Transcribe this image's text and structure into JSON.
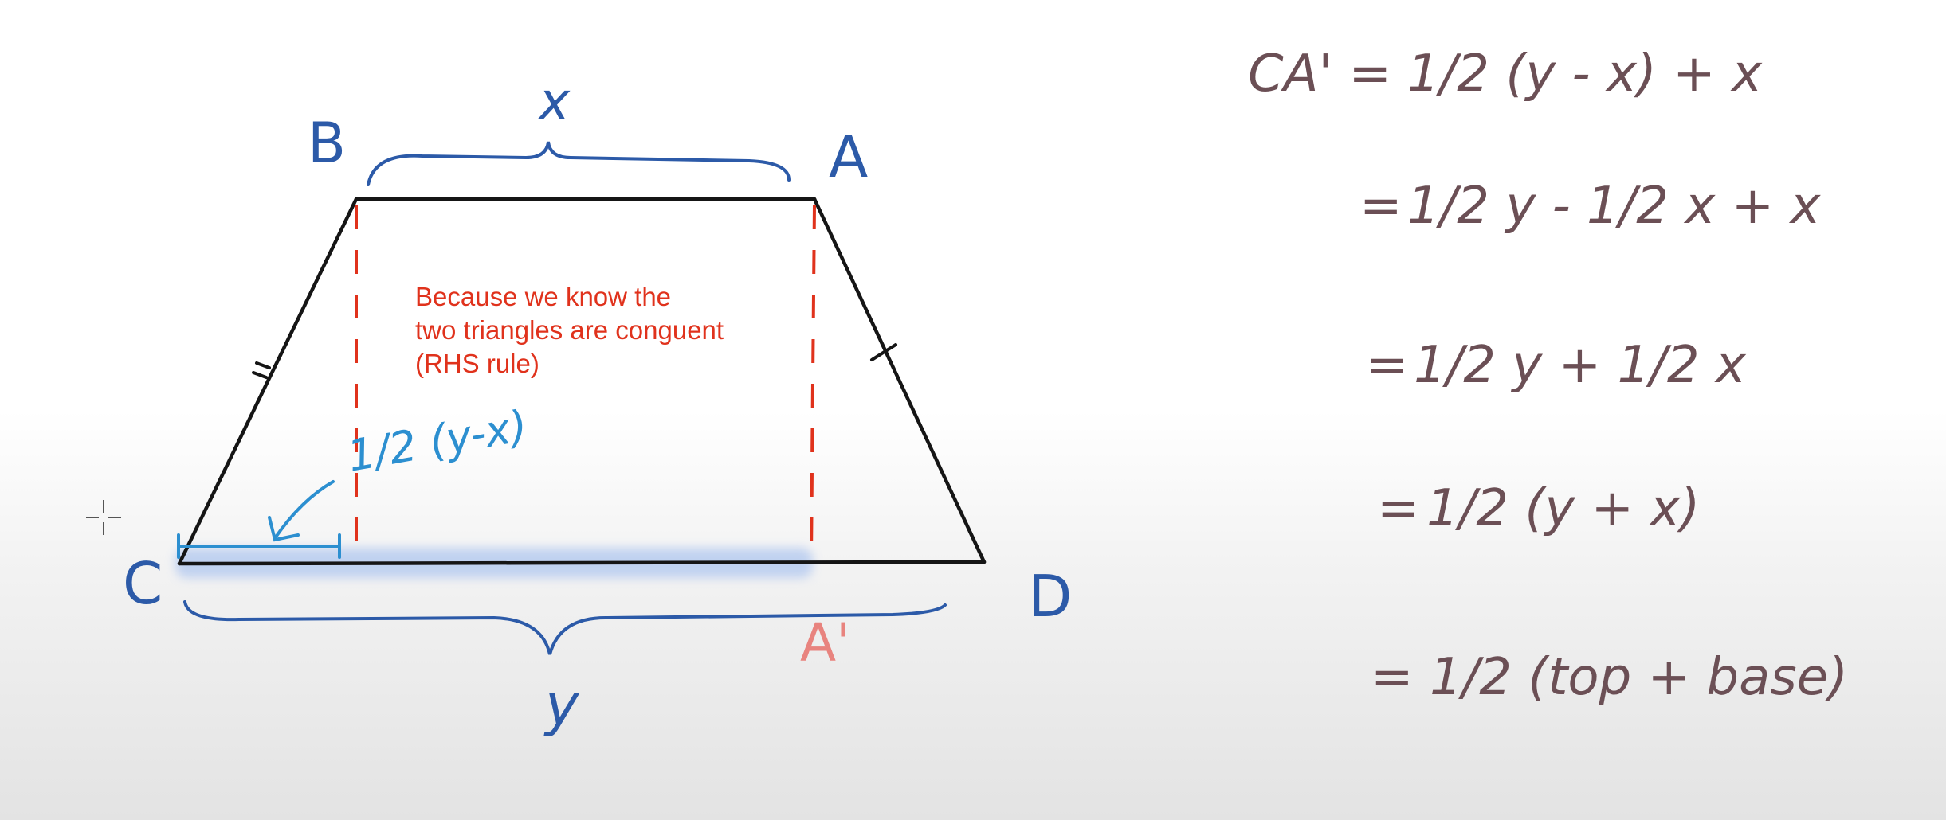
{
  "diagram": {
    "vertices": {
      "b": "B",
      "a": "A",
      "c": "C",
      "d": "D",
      "a_prime": "A'"
    },
    "top_label": "x",
    "base_label": "y",
    "segment_label": "1/2 (y-x)",
    "note": {
      "line1": "Because we know the",
      "line2": "two triangles are conguent",
      "line3": "(RHS rule)"
    },
    "colors": {
      "ink_black": "#151515",
      "ink_blue": "#2c5aa8",
      "ink_red": "#e0321c",
      "ink_pink": "#e8837e",
      "highlight": "#b8ccf0",
      "math_ink": "#6b4f55"
    }
  },
  "derivation": {
    "lines": [
      {
        "lhs": "CA' =",
        "rhs": "1/2 (y - x) + x"
      },
      {
        "lhs": "=",
        "rhs": "1/2 y - 1/2 x + x"
      },
      {
        "lhs": "=",
        "rhs": "1/2 y + 1/2 x"
      },
      {
        "lhs": "=",
        "rhs": "1/2 (y + x)"
      },
      {
        "lhs": "=",
        "rhs": "1/2 (top + base)"
      }
    ]
  }
}
